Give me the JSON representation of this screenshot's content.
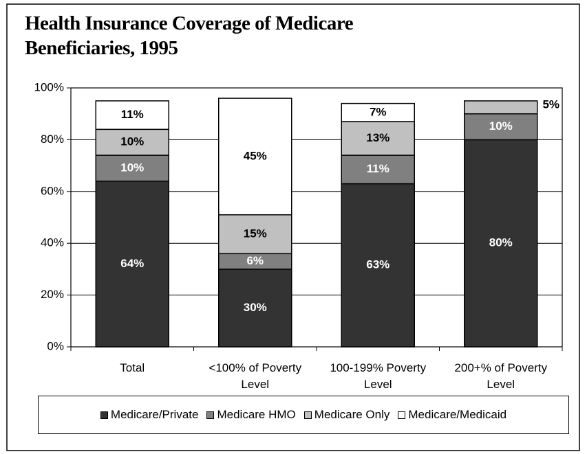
{
  "chart_data": {
    "type": "stacked_bar",
    "title": "Health Insurance Coverage of Medicare Beneficiaries, 1995",
    "categories": [
      "Total",
      "<100% of Poverty Level",
      "100-199% Poverty Level",
      "200+% of Poverty Level"
    ],
    "series": [
      {
        "name": "Medicare/Private",
        "color": "#333333",
        "values": [
          64,
          30,
          63,
          80
        ],
        "value_labels": [
          "64%",
          "30%",
          "63%",
          "80%"
        ]
      },
      {
        "name": "Medicare HMO",
        "color": "#808080",
        "values": [
          10,
          6,
          11,
          10
        ],
        "value_labels": [
          "10%",
          "6%",
          "11%",
          "10%"
        ]
      },
      {
        "name": "Medicare Only",
        "color": "#c0c0c0",
        "values": [
          10,
          15,
          13,
          5
        ],
        "value_labels": [
          "10%",
          "15%",
          "13%",
          "5%"
        ]
      },
      {
        "name": "Medicare/Medicaid",
        "color": "#ffffff",
        "values": [
          11,
          45,
          7,
          null
        ],
        "value_labels": [
          "11%",
          "45%",
          "7%",
          null
        ]
      }
    ],
    "ylim": [
      0,
      100
    ],
    "yticks": [
      {
        "value": 0,
        "label": "0%"
      },
      {
        "value": 20,
        "label": "20%"
      },
      {
        "value": 40,
        "label": "40%"
      },
      {
        "value": 60,
        "label": "60%"
      },
      {
        "value": 80,
        "label": "80%"
      },
      {
        "value": 100,
        "label": "100%"
      }
    ],
    "grid": true,
    "legend": "bottom"
  }
}
